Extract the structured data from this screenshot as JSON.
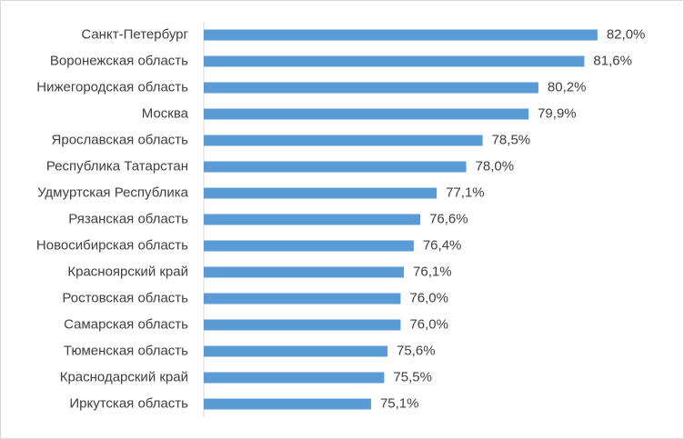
{
  "chart_data": {
    "type": "bar",
    "orientation": "horizontal",
    "categories": [
      "Санкт-Петербург",
      "Воронежская область",
      "Нижегородская область",
      "Москва",
      "Ярославская область",
      "Республика Татарстан",
      "Удмуртская Республика",
      "Рязанская область",
      "Новосибирская область",
      "Красноярский край",
      "Ростовская область",
      "Самарская область",
      "Тюменская область",
      "Краснодарский край",
      "Иркутская область"
    ],
    "values": [
      82.0,
      81.6,
      80.2,
      79.9,
      78.5,
      78.0,
      77.1,
      76.6,
      76.4,
      76.1,
      76.0,
      76.0,
      75.6,
      75.5,
      75.1
    ],
    "value_labels": [
      "82,0%",
      "81,6%",
      "80,2%",
      "79,9%",
      "78,5%",
      "78,0%",
      "77,1%",
      "76,6%",
      "76,4%",
      "76,1%",
      "76,0%",
      "76,0%",
      "75,6%",
      "75,5%",
      "75,1%"
    ],
    "color": "#5b9bd5",
    "xlim": [
      70,
      84
    ]
  }
}
